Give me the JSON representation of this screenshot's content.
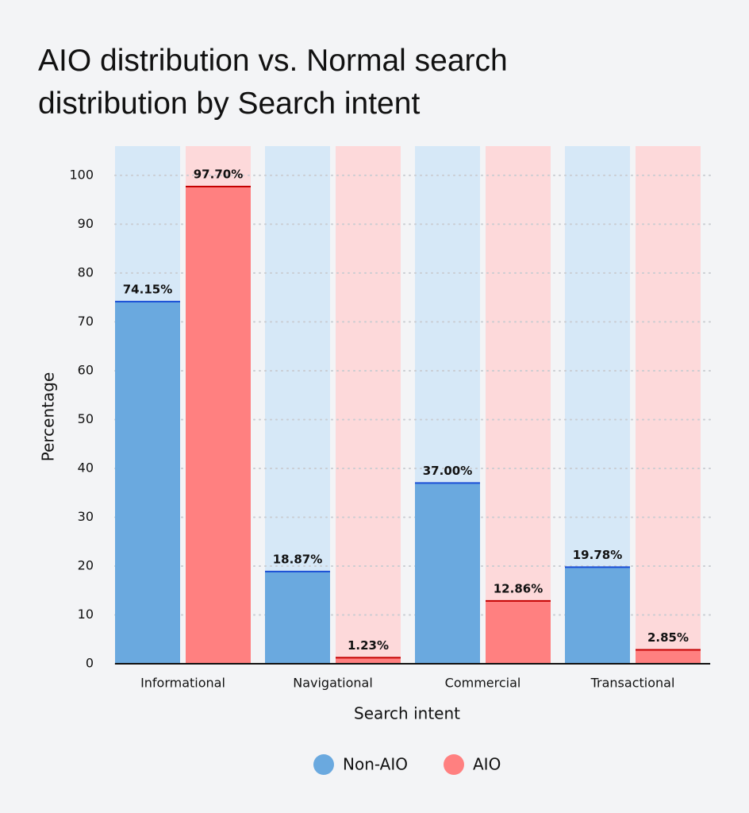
{
  "chart_data": {
    "type": "bar",
    "title": "AIO distribution vs. Normal search distribution by Search intent",
    "x_label": "Search intent",
    "y_label": "Percentage",
    "categories": [
      "Informational",
      "Navigational",
      "Commercial",
      "Transactional"
    ],
    "series": [
      {
        "name": "Non-AIO",
        "color": "#6aa9df",
        "values": [
          74.15,
          18.87,
          37.0,
          19.78
        ],
        "value_labels": [
          "74.15%",
          "18.87%",
          "37.00%",
          "19.78%"
        ]
      },
      {
        "name": "AIO",
        "color": "#ff8080",
        "values": [
          97.7,
          1.23,
          12.86,
          2.85
        ],
        "value_labels": [
          "97.70%",
          "1.23%",
          "12.86%",
          "2.85%"
        ]
      }
    ],
    "ylim": [
      0,
      106
    ],
    "yticks": [
      0,
      10,
      20,
      30,
      40,
      50,
      60,
      70,
      80,
      90,
      100
    ],
    "grid": true
  }
}
